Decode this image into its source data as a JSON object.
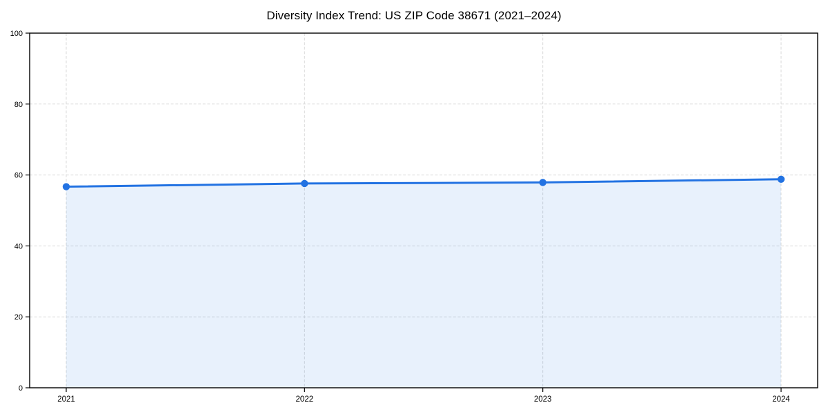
{
  "chart_data": {
    "type": "area",
    "title": "Diversity Index Trend: US ZIP Code 38671 (2021–2024)",
    "categories": [
      "2021",
      "2022",
      "2023",
      "2024"
    ],
    "series": [
      {
        "name": "Diversity Index",
        "values": [
          56.7,
          57.6,
          57.9,
          58.8
        ]
      }
    ],
    "xlabel": "",
    "ylabel": "",
    "ylim": [
      0,
      100
    ],
    "yticks": [
      0,
      20,
      40,
      60,
      80,
      100
    ],
    "grid": true,
    "grid_style": "dashed",
    "legend": false,
    "marker": "circle",
    "colors": {
      "line": "#2272e2",
      "marker": "#2272e2",
      "fill": "#2272e2",
      "fill_opacity": 0.1,
      "grid": "#d9d9d9",
      "axis": "#000000",
      "text": "#000000",
      "background": "#ffffff"
    }
  }
}
